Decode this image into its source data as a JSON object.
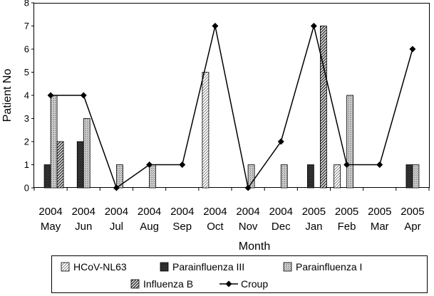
{
  "chart_data": {
    "type": "bar",
    "title": "",
    "xlabel": "Month",
    "ylabel": "Patient No",
    "ylim": [
      0,
      8
    ],
    "yticks": [
      "0",
      "1",
      "2",
      "3",
      "4",
      "5",
      "6",
      "7",
      "8"
    ],
    "grid": false,
    "legend_position": "bottom",
    "categories": [
      [
        "2004",
        "May"
      ],
      [
        "2004",
        "Jun"
      ],
      [
        "2004",
        "Jul"
      ],
      [
        "2004",
        "Aug"
      ],
      [
        "2004",
        "Sep"
      ],
      [
        "2004",
        "Oct"
      ],
      [
        "2004",
        "Nov"
      ],
      [
        "2004",
        "Dec"
      ],
      [
        "2005",
        "Jan"
      ],
      [
        "2005",
        "Feb"
      ],
      [
        "2005",
        "Mar"
      ],
      [
        "2005",
        "Apr"
      ]
    ],
    "series": [
      {
        "name": "HCoV-NL63",
        "kind": "bar",
        "pattern": "diag-light",
        "values": [
          0,
          0,
          0,
          0,
          0,
          5,
          0,
          0,
          0,
          1,
          0,
          0
        ]
      },
      {
        "name": "Parainfluenza III",
        "kind": "bar",
        "pattern": "solid-dark",
        "values": [
          1,
          2,
          0,
          0,
          0,
          0,
          0,
          0,
          1,
          0,
          0,
          1
        ]
      },
      {
        "name": "Parainfluenza I",
        "kind": "bar",
        "pattern": "crosshatch",
        "values": [
          4,
          3,
          1,
          1,
          0,
          0,
          1,
          1,
          0,
          4,
          0,
          1
        ]
      },
      {
        "name": "Influenza B",
        "kind": "bar",
        "pattern": "diag-heavy",
        "values": [
          2,
          0,
          0,
          0,
          0,
          0,
          0,
          0,
          7,
          0,
          0,
          0
        ]
      },
      {
        "name": "Croup",
        "kind": "line",
        "marker": "diamond",
        "values": [
          4,
          4,
          0,
          1,
          1,
          7,
          0,
          2,
          7,
          1,
          1,
          6
        ]
      }
    ]
  }
}
